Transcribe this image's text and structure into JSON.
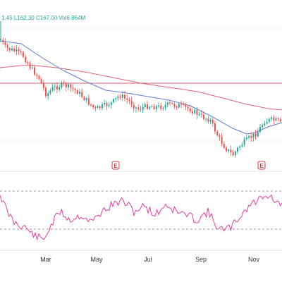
{
  "ohlc_text": "1.45  L162.30  C167.00  Vol6.864M",
  "colors": {
    "up": "#26a69a",
    "down": "#ef5350",
    "ma_fast": "#5b7fd4",
    "ma_slow": "#e2627a",
    "level_line": "#e2627a",
    "rsi": "#e040a0",
    "grid": "#eeeeee",
    "rsi_band": "#999999"
  },
  "chart_data": {
    "type": "candlestick",
    "title": "",
    "xlabel": "",
    "ylabel": "",
    "x_ticks": [
      "Mar",
      "May",
      "Jul",
      "Sep",
      "Nov"
    ],
    "events": [
      "E",
      "E"
    ],
    "indicators": [
      "moving average (fast)",
      "moving average (slow)",
      "RSI"
    ],
    "grid": true
  }
}
